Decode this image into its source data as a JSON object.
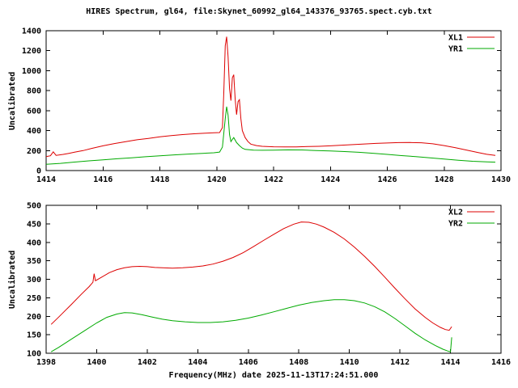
{
  "title": "HIRES Spectrum, gl64, file:Skynet_60992_gl64_143376_93765.spect.cyb.txt",
  "colors": {
    "axis": "#000000",
    "background": "#ffffff",
    "red": "#dd0000",
    "green": "#00aa00"
  },
  "chart_data": [
    {
      "type": "line",
      "ylabel": "Uncalibrated",
      "xlabel": "",
      "xlim": [
        1414,
        1430
      ],
      "ylim": [
        0,
        1400
      ],
      "xticks": [
        1414,
        1416,
        1418,
        1420,
        1422,
        1424,
        1426,
        1428,
        1430
      ],
      "yticks": [
        0,
        200,
        400,
        600,
        800,
        1000,
        1200,
        1400
      ],
      "grid": false,
      "legend_position": "top-right",
      "series": [
        {
          "name": "XL1",
          "color": "#dd0000",
          "points": [
            [
              1414.0,
              140
            ],
            [
              1414.15,
              148
            ],
            [
              1414.25,
              188
            ],
            [
              1414.35,
              152
            ],
            [
              1414.6,
              162
            ],
            [
              1414.8,
              172
            ],
            [
              1415.0,
              184
            ],
            [
              1415.3,
              200
            ],
            [
              1415.6,
              222
            ],
            [
              1416.0,
              248
            ],
            [
              1416.4,
              270
            ],
            [
              1416.8,
              290
            ],
            [
              1417.2,
              308
            ],
            [
              1417.6,
              322
            ],
            [
              1418.0,
              338
            ],
            [
              1418.4,
              350
            ],
            [
              1418.8,
              360
            ],
            [
              1419.2,
              368
            ],
            [
              1419.6,
              374
            ],
            [
              1419.9,
              378
            ],
            [
              1420.1,
              380
            ],
            [
              1420.2,
              430
            ],
            [
              1420.25,
              780
            ],
            [
              1420.3,
              1250
            ],
            [
              1420.35,
              1340
            ],
            [
              1420.4,
              1140
            ],
            [
              1420.45,
              820
            ],
            [
              1420.5,
              700
            ],
            [
              1420.55,
              930
            ],
            [
              1420.6,
              960
            ],
            [
              1420.65,
              710
            ],
            [
              1420.7,
              560
            ],
            [
              1420.75,
              690
            ],
            [
              1420.8,
              710
            ],
            [
              1420.85,
              520
            ],
            [
              1420.9,
              400
            ],
            [
              1421.0,
              330
            ],
            [
              1421.1,
              290
            ],
            [
              1421.2,
              265
            ],
            [
              1421.4,
              250
            ],
            [
              1421.6,
              243
            ],
            [
              1422.0,
              238
            ],
            [
              1422.4,
              236
            ],
            [
              1422.8,
              237
            ],
            [
              1423.2,
              240
            ],
            [
              1423.6,
              243
            ],
            [
              1424.0,
              248
            ],
            [
              1424.4,
              254
            ],
            [
              1424.8,
              260
            ],
            [
              1425.2,
              266
            ],
            [
              1425.6,
              272
            ],
            [
              1426.0,
              276
            ],
            [
              1426.4,
              280
            ],
            [
              1426.8,
              281
            ],
            [
              1427.2,
              278
            ],
            [
              1427.6,
              268
            ],
            [
              1428.0,
              250
            ],
            [
              1428.4,
              228
            ],
            [
              1428.8,
              205
            ],
            [
              1429.2,
              180
            ],
            [
              1429.5,
              163
            ],
            [
              1429.8,
              152
            ]
          ]
        },
        {
          "name": "YR1",
          "color": "#00aa00",
          "points": [
            [
              1414.0,
              62
            ],
            [
              1414.5,
              72
            ],
            [
              1415.0,
              85
            ],
            [
              1415.5,
              97
            ],
            [
              1416.0,
              108
            ],
            [
              1416.5,
              118
            ],
            [
              1417.0,
              128
            ],
            [
              1417.5,
              138
            ],
            [
              1418.0,
              148
            ],
            [
              1418.5,
              157
            ],
            [
              1419.0,
              165
            ],
            [
              1419.5,
              172
            ],
            [
              1419.9,
              178
            ],
            [
              1420.1,
              185
            ],
            [
              1420.2,
              235
            ],
            [
              1420.3,
              520
            ],
            [
              1420.35,
              640
            ],
            [
              1420.4,
              555
            ],
            [
              1420.45,
              360
            ],
            [
              1420.5,
              290
            ],
            [
              1420.55,
              312
            ],
            [
              1420.6,
              330
            ],
            [
              1420.7,
              280
            ],
            [
              1420.8,
              250
            ],
            [
              1420.9,
              225
            ],
            [
              1421.0,
              212
            ],
            [
              1421.3,
              205
            ],
            [
              1421.6,
              203
            ],
            [
              1422.0,
              205
            ],
            [
              1422.5,
              207
            ],
            [
              1423.0,
              206
            ],
            [
              1423.5,
              201
            ],
            [
              1424.0,
              196
            ],
            [
              1424.5,
              190
            ],
            [
              1425.0,
              183
            ],
            [
              1425.5,
              173
            ],
            [
              1426.0,
              162
            ],
            [
              1426.5,
              150
            ],
            [
              1427.0,
              140
            ],
            [
              1427.5,
              128
            ],
            [
              1428.0,
              115
            ],
            [
              1428.5,
              103
            ],
            [
              1429.0,
              93
            ],
            [
              1429.5,
              87
            ],
            [
              1429.8,
              84
            ]
          ]
        }
      ]
    },
    {
      "type": "line",
      "ylabel": "Uncalibrated",
      "xlabel": "Frequency(MHz) date 2025-11-13T17:24:51.000",
      "xlim": [
        1398,
        1416
      ],
      "ylim": [
        100,
        500
      ],
      "xticks": [
        1398,
        1400,
        1402,
        1404,
        1406,
        1408,
        1410,
        1412,
        1414,
        1416
      ],
      "yticks": [
        100,
        150,
        200,
        250,
        300,
        350,
        400,
        450,
        500
      ],
      "grid": false,
      "legend_position": "top-right",
      "series": [
        {
          "name": "XL2",
          "color": "#dd0000",
          "points": [
            [
              1398.2,
              178
            ],
            [
              1398.5,
              198
            ],
            [
              1399.0,
              232
            ],
            [
              1399.4,
              260
            ],
            [
              1399.7,
              280
            ],
            [
              1399.85,
              292
            ],
            [
              1399.9,
              315
            ],
            [
              1399.95,
              296
            ],
            [
              1400.2,
              306
            ],
            [
              1400.5,
              318
            ],
            [
              1400.8,
              326
            ],
            [
              1401.1,
              331
            ],
            [
              1401.4,
              334
            ],
            [
              1401.7,
              335
            ],
            [
              1402.0,
              334
            ],
            [
              1402.3,
              332
            ],
            [
              1402.6,
              331
            ],
            [
              1403.0,
              330
            ],
            [
              1403.4,
              331
            ],
            [
              1403.8,
              333
            ],
            [
              1404.2,
              336
            ],
            [
              1404.6,
              341
            ],
            [
              1405.0,
              349
            ],
            [
              1405.4,
              359
            ],
            [
              1405.8,
              372
            ],
            [
              1406.2,
              388
            ],
            [
              1406.6,
              405
            ],
            [
              1407.0,
              421
            ],
            [
              1407.4,
              437
            ],
            [
              1407.8,
              449
            ],
            [
              1408.1,
              455
            ],
            [
              1408.4,
              454
            ],
            [
              1408.7,
              449
            ],
            [
              1409.0,
              441
            ],
            [
              1409.4,
              427
            ],
            [
              1409.8,
              409
            ],
            [
              1410.2,
              387
            ],
            [
              1410.6,
              362
            ],
            [
              1411.0,
              335
            ],
            [
              1411.4,
              306
            ],
            [
              1411.8,
              276
            ],
            [
              1412.2,
              247
            ],
            [
              1412.6,
              220
            ],
            [
              1413.0,
              197
            ],
            [
              1413.3,
              182
            ],
            [
              1413.6,
              170
            ],
            [
              1413.8,
              164
            ],
            [
              1413.95,
              162
            ],
            [
              1414.05,
              172
            ]
          ]
        },
        {
          "name": "YR2",
          "color": "#00aa00",
          "points": [
            [
              1398.2,
              104
            ],
            [
              1398.5,
              116
            ],
            [
              1399.0,
              138
            ],
            [
              1399.5,
              160
            ],
            [
              1400.0,
              182
            ],
            [
              1400.4,
              197
            ],
            [
              1400.8,
              206
            ],
            [
              1401.1,
              210
            ],
            [
              1401.4,
              209
            ],
            [
              1401.8,
              204
            ],
            [
              1402.2,
              198
            ],
            [
              1402.6,
              192
            ],
            [
              1403.0,
              188
            ],
            [
              1403.5,
              185
            ],
            [
              1404.0,
              183
            ],
            [
              1404.5,
              183
            ],
            [
              1405.0,
              185
            ],
            [
              1405.5,
              189
            ],
            [
              1406.0,
              195
            ],
            [
              1406.5,
              203
            ],
            [
              1407.0,
              212
            ],
            [
              1407.5,
              221
            ],
            [
              1408.0,
              230
            ],
            [
              1408.5,
              237
            ],
            [
              1409.0,
              242
            ],
            [
              1409.4,
              245
            ],
            [
              1409.8,
              245
            ],
            [
              1410.2,
              242
            ],
            [
              1410.6,
              236
            ],
            [
              1411.0,
              226
            ],
            [
              1411.4,
              212
            ],
            [
              1411.8,
              194
            ],
            [
              1412.2,
              174
            ],
            [
              1412.6,
              154
            ],
            [
              1413.0,
              136
            ],
            [
              1413.4,
              121
            ],
            [
              1413.7,
              111
            ],
            [
              1413.9,
              106
            ],
            [
              1414.0,
              104
            ],
            [
              1414.05,
              143
            ]
          ]
        }
      ]
    }
  ]
}
